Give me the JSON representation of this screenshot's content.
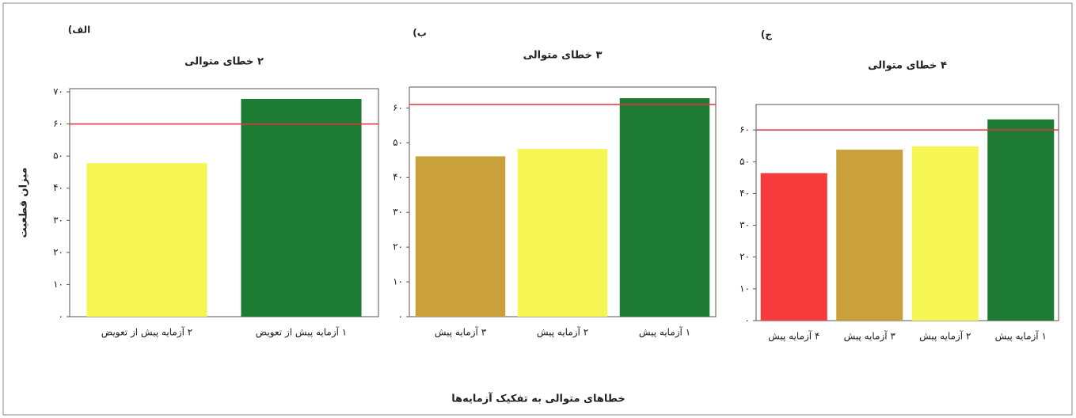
{
  "ylabel": "میزان قطعیت",
  "xlabel": "خطاهای متوالی به تفکیک آزمایه‌ها",
  "chart_data": [
    {
      "type": "bar",
      "panel_label": "الف)",
      "title": "۲ خطای متوالی",
      "categories": [
        "۲ آزمایه پیش از تعویض",
        "۱ آزمایه پیش از تعویض"
      ],
      "values": [
        47.8,
        67.8
      ],
      "colors": [
        "#f5f553",
        "#1e7b34"
      ],
      "reference_line": 60,
      "reference_color": "#e8303a",
      "ylim": [
        0,
        71
      ],
      "yticks": [
        {
          "value": 0,
          "label": "۰"
        },
        {
          "value": 10,
          "label": "۱۰"
        },
        {
          "value": 20,
          "label": "۲۰"
        },
        {
          "value": 30,
          "label": "۳۰"
        },
        {
          "value": 40,
          "label": "۴۰"
        },
        {
          "value": 50,
          "label": "۵۰"
        },
        {
          "value": 60,
          "label": "۶۰"
        },
        {
          "value": 70,
          "label": "۷۰"
        }
      ]
    },
    {
      "type": "bar",
      "panel_label": "ب)",
      "title": "۳ خطای متوالی",
      "categories": [
        "۳ آزمایه پیش",
        "۲ آزمایه پیش",
        "۱ آزمایه پیش"
      ],
      "values": [
        46.1,
        48.2,
        62.8
      ],
      "colors": [
        "#c9a03c",
        "#f5f553",
        "#1e7b34"
      ],
      "reference_line": 61,
      "reference_color": "#e8303a",
      "ylim": [
        0,
        66
      ],
      "yticks": [
        {
          "value": 0,
          "label": "۰"
        },
        {
          "value": 10,
          "label": "۱۰"
        },
        {
          "value": 20,
          "label": "۲۰"
        },
        {
          "value": 30,
          "label": "۳۰"
        },
        {
          "value": 40,
          "label": "۴۰"
        },
        {
          "value": 50,
          "label": "۵۰"
        },
        {
          "value": 60,
          "label": "۶۰"
        }
      ]
    },
    {
      "type": "bar",
      "panel_label": "ج)",
      "title": "۴ خطای متوالی",
      "categories": [
        "۴ آزمایه پیش",
        "۳ آزمایه پیش",
        "۲ آزمایه پیش",
        "۱ آزمایه پیش"
      ],
      "values": [
        46.4,
        53.8,
        54.8,
        63.3
      ],
      "colors": [
        "#f53b3b",
        "#c9a03c",
        "#f5f553",
        "#1e7b34"
      ],
      "reference_line": 60,
      "reference_color": "#e8303a",
      "ylim": [
        0,
        68
      ],
      "yticks": [
        {
          "value": 0,
          "label": "۰"
        },
        {
          "value": 10,
          "label": "۱۰"
        },
        {
          "value": 20,
          "label": "۲۰"
        },
        {
          "value": 30,
          "label": "۳۰"
        },
        {
          "value": 40,
          "label": "۴۰"
        },
        {
          "value": 50,
          "label": "۵۰"
        },
        {
          "value": 60,
          "label": "۶۰"
        }
      ]
    }
  ]
}
